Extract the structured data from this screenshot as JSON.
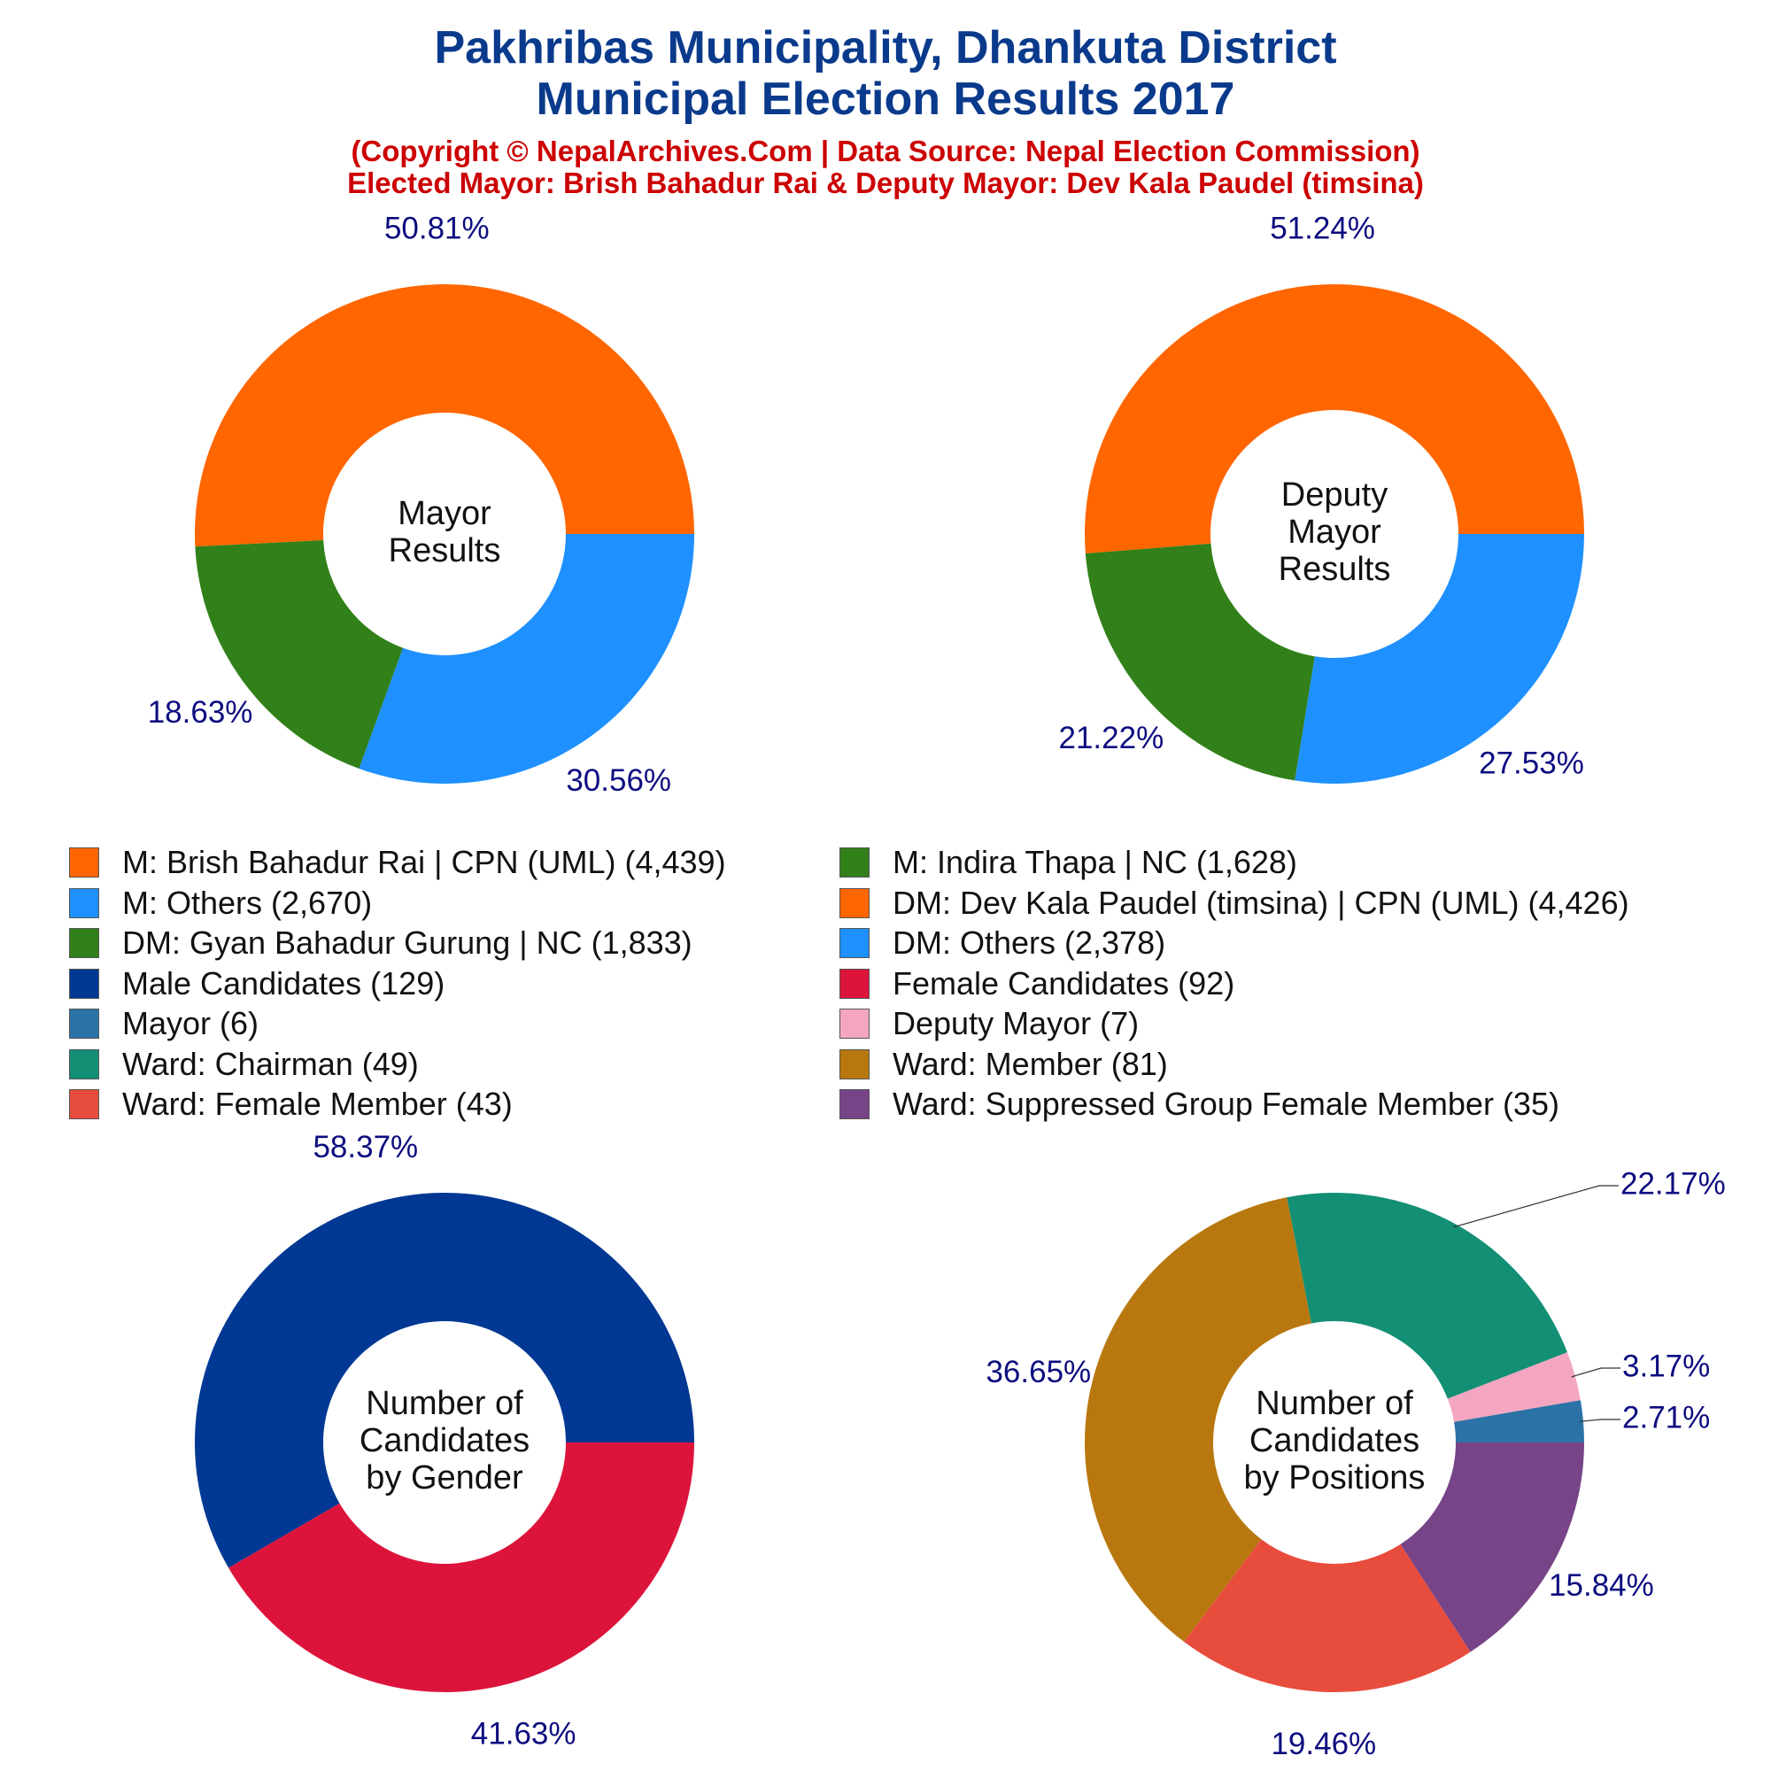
{
  "header": {
    "title_line1": "Pakhribas Municipality, Dhankuta District",
    "title_line2": "Municipal Election Results 2017",
    "subtitle_line1": "(Copyright © NepalArchives.Com | Data Source: Nepal Election Commission)",
    "subtitle_line2": "Elected Mayor: Brish Bahadur Rai & Deputy Mayor: Dev Kala Paudel (timsina)"
  },
  "legend": [
    {
      "label": "M: Brish Bahadur Rai | CPN (UML) (4,439)",
      "color": "#FF6600"
    },
    {
      "label": "M: Indira Thapa | NC (1,628)",
      "color": "#318019"
    },
    {
      "label": "M: Others (2,670)",
      "color": "#1E90FF"
    },
    {
      "label": "DM: Dev Kala Paudel (timsina) | CPN (UML) (4,426)",
      "color": "#FF6600"
    },
    {
      "label": "DM: Gyan Bahadur Gurung | NC (1,833)",
      "color": "#318019"
    },
    {
      "label": "DM: Others (2,378)",
      "color": "#1E90FF"
    },
    {
      "label": "Male Candidates (129)",
      "color": "#003893"
    },
    {
      "label": "Female Candidates (92)",
      "color": "#DC143C"
    },
    {
      "label": "Mayor (6)",
      "color": "#2B73A6"
    },
    {
      "label": "Deputy Mayor (7)",
      "color": "#F4A6C1"
    },
    {
      "label": "Ward: Chairman (49)",
      "color": "#138F76"
    },
    {
      "label": "Ward: Member (81)",
      "color": "#B8780F"
    },
    {
      "label": "Ward: Female Member (43)",
      "color": "#E84C3D"
    },
    {
      "label": "Ward: Suppressed Group Female Member (35)",
      "color": "#774488"
    }
  ],
  "chart_data": [
    {
      "type": "pie",
      "title": "Mayor Results",
      "center_label": [
        "Mayor",
        "Results"
      ],
      "series": [
        {
          "name": "M: Brish Bahadur Rai | CPN (UML)",
          "value": 4439,
          "percent_label": "50.81%",
          "color": "#FF6600"
        },
        {
          "name": "M: Others",
          "value": 2670,
          "percent_label": "30.56%",
          "color": "#1E90FF"
        },
        {
          "name": "M: Indira Thapa | NC",
          "value": 1628,
          "percent_label": "18.63%",
          "color": "#318019"
        }
      ]
    },
    {
      "type": "pie",
      "title": "Deputy Mayor Results",
      "center_label": [
        "Deputy",
        "Mayor",
        "Results"
      ],
      "series": [
        {
          "name": "DM: Dev Kala Paudel (timsina) | CPN (UML)",
          "value": 4426,
          "percent_label": "51.24%",
          "color": "#FF6600"
        },
        {
          "name": "DM: Others",
          "value": 2378,
          "percent_label": "27.53%",
          "color": "#1E90FF"
        },
        {
          "name": "DM: Gyan Bahadur Gurung | NC",
          "value": 1833,
          "percent_label": "21.22%",
          "color": "#318019"
        }
      ]
    },
    {
      "type": "pie",
      "title": "Number of Candidates by Gender",
      "center_label": [
        "Number of",
        "Candidates",
        "by Gender"
      ],
      "series": [
        {
          "name": "Male Candidates",
          "value": 129,
          "percent_label": "58.37%",
          "color": "#003893"
        },
        {
          "name": "Female Candidates",
          "value": 92,
          "percent_label": "41.63%",
          "color": "#DC143C"
        }
      ]
    },
    {
      "type": "pie",
      "title": "Number of Candidates by Positions",
      "center_label": [
        "Number of",
        "Candidates",
        "by Positions"
      ],
      "series": [
        {
          "name": "Mayor",
          "value": 6,
          "percent_label": "2.71%",
          "color": "#2B73A6"
        },
        {
          "name": "Deputy Mayor",
          "value": 7,
          "percent_label": "3.17%",
          "color": "#F4A6C1"
        },
        {
          "name": "Ward: Chairman",
          "value": 49,
          "percent_label": "22.17%",
          "color": "#138F76"
        },
        {
          "name": "Ward: Member",
          "value": 81,
          "percent_label": "36.65%",
          "color": "#B8780F"
        },
        {
          "name": "Ward: Female Member",
          "value": 43,
          "percent_label": "19.46%",
          "color": "#E84C3D"
        },
        {
          "name": "Ward: Suppressed Group Female Member",
          "value": 35,
          "percent_label": "15.84%",
          "color": "#774488"
        }
      ]
    }
  ]
}
